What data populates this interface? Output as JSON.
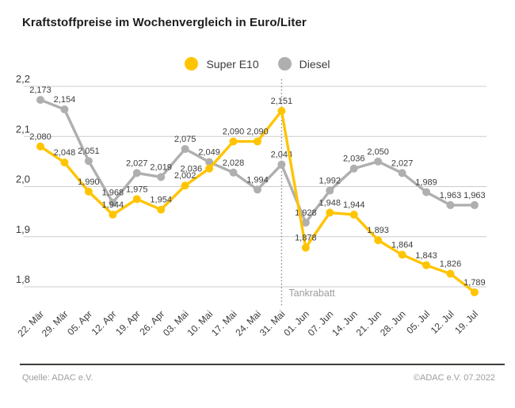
{
  "title": "Kraftstoffpreise im Wochenvergleich in Euro/Liter",
  "legend": {
    "items": [
      {
        "label": "Super E10",
        "color": "#FFC400"
      },
      {
        "label": "Diesel",
        "color": "#AFAFAF"
      }
    ]
  },
  "annotation": {
    "label": "Tankrabatt"
  },
  "footer": {
    "source": "Quelle: ADAC e.V.",
    "copyright": "©ADAC e.V.  07.2022"
  },
  "chart_data": {
    "type": "line",
    "title": "Kraftstoffpreise im Wochenvergleich in Euro/Liter",
    "categories": [
      "22. Mär",
      "29. Mär",
      "05. Apr",
      "12. Apr",
      "19. Apr",
      "26. Apr",
      "03. Mai",
      "10. Mai",
      "17. Mai",
      "24. Mai",
      "31. Mai",
      "01. Jun",
      "07. Jun",
      "14. Jun",
      "21. Jun",
      "28. Jun",
      "05. Jul",
      "12. Jul",
      "19. Jul"
    ],
    "series": [
      {
        "name": "Super E10",
        "color": "#FFC400",
        "values": [
          2.08,
          2.048,
          1.99,
          1.944,
          1.975,
          1.954,
          2.002,
          2.036,
          2.09,
          2.09,
          2.151,
          1.878,
          1.948,
          1.944,
          1.893,
          1.864,
          1.843,
          1.826,
          1.789
        ]
      },
      {
        "name": "Diesel",
        "color": "#AFAFAF",
        "values": [
          2.173,
          2.154,
          2.051,
          1.968,
          2.027,
          2.019,
          2.075,
          2.049,
          2.028,
          1.994,
          2.044,
          1.928,
          1.992,
          2.036,
          2.05,
          2.027,
          1.989,
          1.963,
          1.963
        ]
      }
    ],
    "xlabel": "",
    "ylabel": "Euro/Liter",
    "ylim": [
      1.8,
      2.2
    ],
    "yticks": [
      2.2,
      2.1,
      2.0,
      1.9,
      1.8
    ],
    "ytick_labels": [
      "2,2",
      "2,1",
      "2,0",
      "1,9",
      "1,8"
    ],
    "grid": true,
    "legend_position": "top-center",
    "value_labels": true,
    "annotation": {
      "label": "Tankrabatt",
      "category": "31. Mai",
      "category_index": 10
    }
  }
}
